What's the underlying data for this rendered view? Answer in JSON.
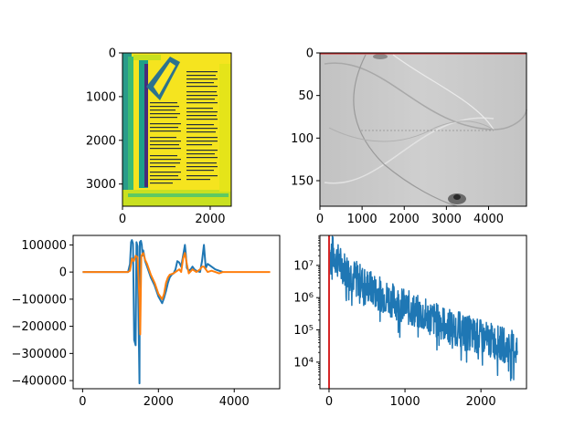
{
  "chart_data": [
    {
      "type": "heatmap",
      "colormap": "viridis",
      "xlim": [
        0,
        2480
      ],
      "ylim": [
        3508,
        0
      ],
      "xticks": [
        {
          "v": 0,
          "label": "0"
        },
        {
          "v": 2000,
          "label": "2000"
        }
      ],
      "yticks": [
        {
          "v": 0,
          "label": "0"
        },
        {
          "v": 1000,
          "label": "1000"
        },
        {
          "v": 2000,
          "label": "2000"
        },
        {
          "v": 3000,
          "label": "3000"
        }
      ]
    },
    {
      "type": "heatmap",
      "colormap": "gray",
      "xlim": [
        0,
        4900
      ],
      "ylim": [
        180,
        0
      ],
      "xticks": [
        {
          "v": 0,
          "label": "0"
        },
        {
          "v": 1000,
          "label": "1000"
        },
        {
          "v": 2000,
          "label": "2000"
        },
        {
          "v": 3000,
          "label": "3000"
        },
        {
          "v": 4000,
          "label": "4000"
        }
      ],
      "yticks": [
        {
          "v": 0,
          "label": "0"
        },
        {
          "v": 50,
          "label": "50"
        },
        {
          "v": 100,
          "label": "100"
        },
        {
          "v": 150,
          "label": "150"
        }
      ],
      "hline": {
        "y": 0,
        "color": "#d62728"
      }
    },
    {
      "type": "line",
      "xlim": [
        -250,
        5200
      ],
      "ylim": [
        -430000,
        135000
      ],
      "xticks": [
        {
          "v": 0,
          "label": "0"
        },
        {
          "v": 2000,
          "label": "2000"
        },
        {
          "v": 4000,
          "label": "4000"
        }
      ],
      "yticks": [
        {
          "v": 100000,
          "label": "100000"
        },
        {
          "v": 0,
          "label": "0"
        },
        {
          "v": -100000,
          "label": "−100000"
        },
        {
          "v": -200000,
          "label": "−200000"
        },
        {
          "v": -300000,
          "label": "−300000"
        },
        {
          "v": -400000,
          "label": "−400000"
        }
      ],
      "series": [
        {
          "color": "#1f77b4",
          "x": [
            0,
            1200,
            1250,
            1280,
            1300,
            1330,
            1360,
            1400,
            1420,
            1450,
            1480,
            1500,
            1510,
            1540,
            1560,
            1580,
            1600,
            1650,
            1700,
            1800,
            1900,
            2000,
            2100,
            2150,
            2200,
            2250,
            2300,
            2350,
            2400,
            2450,
            2500,
            2550,
            2600,
            2650,
            2700,
            2720,
            2750,
            2800,
            2850,
            2900,
            2950,
            3000,
            3100,
            3150,
            3200,
            3250,
            3300,
            3400,
            3500,
            3600,
            3700
          ],
          "y": [
            0,
            0,
            30000,
            110000,
            118000,
            105000,
            -250000,
            -270000,
            110000,
            95000,
            -200000,
            -410000,
            110000,
            115000,
            100000,
            60000,
            80000,
            40000,
            20000,
            -20000,
            -50000,
            -90000,
            -115000,
            -95000,
            -70000,
            -40000,
            -20000,
            -10000,
            -5000,
            10000,
            40000,
            35000,
            20000,
            60000,
            100000,
            70000,
            15000,
            5000,
            10000,
            20000,
            10000,
            5000,
            0,
            40000,
            100000,
            15000,
            30000,
            20000,
            10000,
            5000,
            0
          ]
        },
        {
          "color": "#ff7f0e",
          "x": [
            0,
            1200,
            1250,
            1300,
            1350,
            1400,
            1450,
            1500,
            1520,
            1550,
            1600,
            1650,
            1700,
            1800,
            1900,
            2000,
            2100,
            2150,
            2200,
            2250,
            2300,
            2400,
            2500,
            2550,
            2600,
            2650,
            2700,
            2750,
            2800,
            2900,
            3000,
            3100,
            3150,
            3200,
            3250,
            3300,
            3400,
            3500,
            3600,
            3700,
            3750,
            4950
          ],
          "y": [
            0,
            0,
            5000,
            50000,
            40000,
            60000,
            55000,
            -100000,
            -230000,
            60000,
            70000,
            45000,
            30000,
            -10000,
            -40000,
            -80000,
            -100000,
            -80000,
            -40000,
            -20000,
            -10000,
            -5000,
            5000,
            10000,
            0,
            50000,
            70000,
            30000,
            -5000,
            10000,
            0,
            10000,
            20000,
            20000,
            10000,
            0,
            5000,
            0,
            -5000,
            0,
            0,
            0
          ]
        }
      ]
    },
    {
      "type": "line",
      "yscale": "log",
      "xlim": [
        -120,
        2600
      ],
      "ylim": [
        1500,
        85000000
      ],
      "xticks": [
        {
          "v": 0,
          "label": "0"
        },
        {
          "v": 1000,
          "label": "1000"
        },
        {
          "v": 2000,
          "label": "2000"
        }
      ],
      "yticks": [
        {
          "v": 10000,
          "label": "10⁴"
        },
        {
          "v": 100000,
          "label": "10⁵"
        },
        {
          "v": 1000000,
          "label": "10⁶"
        },
        {
          "v": 10000000,
          "label": "10⁷"
        }
      ],
      "vline": {
        "x": 0,
        "color": "#d62728"
      },
      "series": [
        {
          "color": "#1f77b4",
          "x_start": 0,
          "x_end": 2480,
          "n_points": 620,
          "decay_y_start": 60000000,
          "decay_y_end": 25000
        }
      ]
    }
  ]
}
